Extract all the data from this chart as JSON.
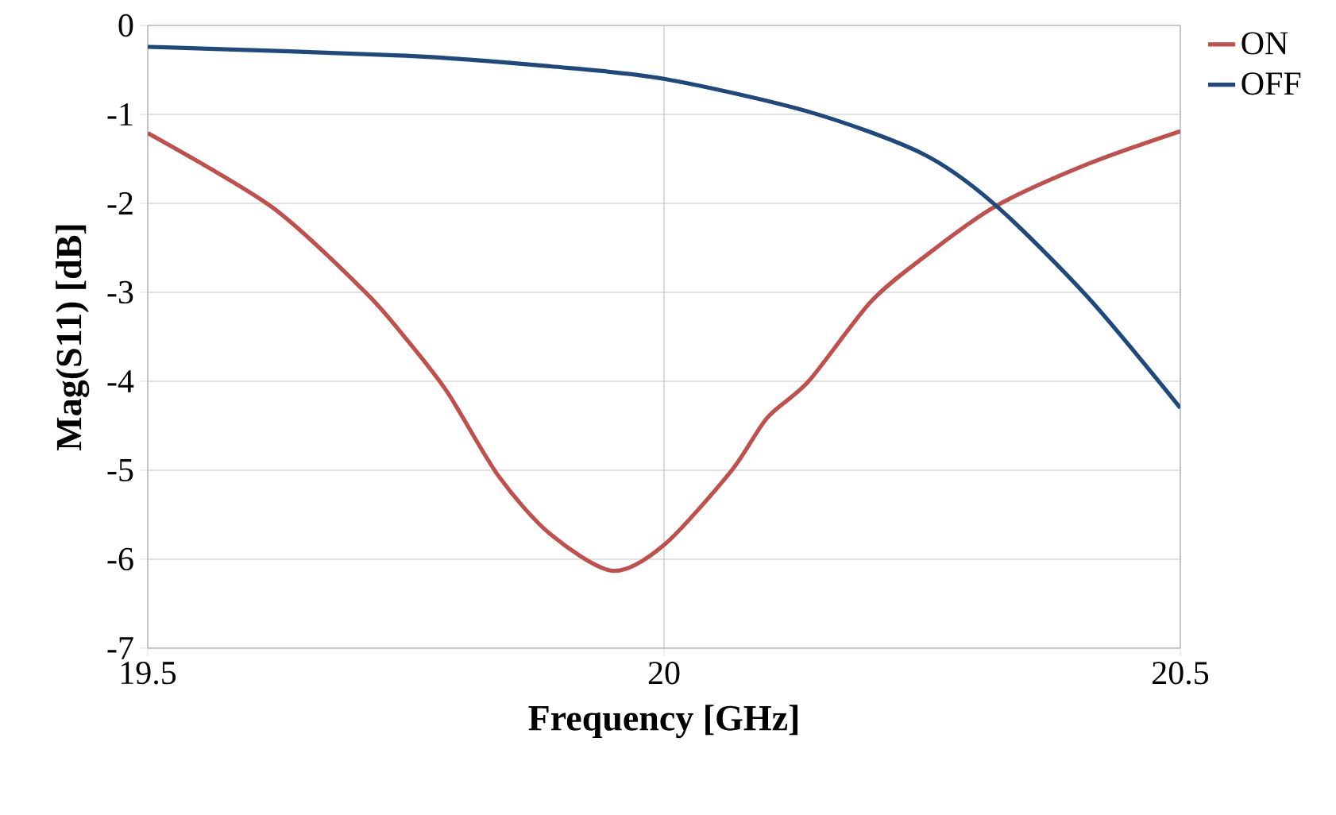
{
  "chart_data": {
    "type": "line",
    "xlabel": "Frequency [GHz]",
    "ylabel": "Mag(S11) [dB]",
    "xlim": [
      19.5,
      20.5
    ],
    "xticks": [
      19.5,
      20,
      20.5
    ],
    "ylim": [
      -7,
      0
    ],
    "yticks": [
      -7,
      -6,
      -5,
      -4,
      -3,
      -2,
      -1,
      0
    ],
    "grid": true,
    "legend": "top right",
    "line_style": "solid",
    "marker": "none",
    "series": [
      {
        "name": "ON",
        "color": "#c0504d",
        "x": [
          19.5,
          19.62,
          19.71,
          19.75,
          19.79,
          19.84,
          19.89,
          19.95,
          20.0,
          20.065,
          20.1,
          20.14,
          20.2,
          20.25,
          20.32,
          20.41,
          20.5
        ],
        "values": [
          -1.21,
          -2.04,
          -2.99,
          -3.52,
          -4.12,
          -5.07,
          -5.72,
          -6.13,
          -5.84,
          -5.01,
          -4.41,
          -4.0,
          -3.11,
          -2.62,
          -2.04,
          -1.56,
          -1.19
        ]
      },
      {
        "name": "OFF",
        "color": "#1f497d",
        "x": [
          19.5,
          19.75,
          19.89,
          20.0,
          20.14,
          20.25,
          20.32,
          20.41,
          20.5
        ],
        "values": [
          -0.24,
          -0.34,
          -0.46,
          -0.6,
          -0.97,
          -1.44,
          -2.01,
          -3.05,
          -4.3
        ]
      }
    ]
  }
}
